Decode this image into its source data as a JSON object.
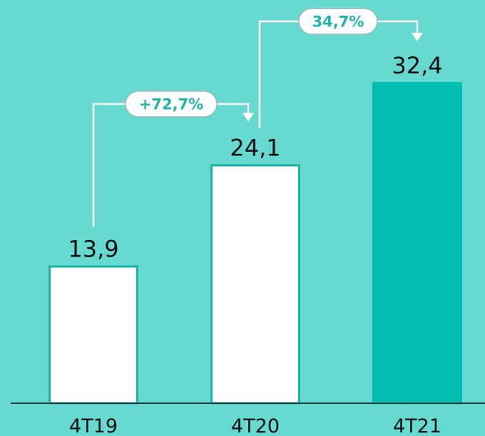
{
  "chart_data": {
    "type": "bar",
    "categories": [
      "4T19",
      "4T20",
      "4T21"
    ],
    "values": [
      13.9,
      24.1,
      32.4
    ],
    "value_labels": [
      "13,9",
      "24,1",
      "32,4"
    ],
    "growth_annotations": [
      {
        "from": "4T19",
        "to": "4T20",
        "label": "+72,7%"
      },
      {
        "from": "4T20",
        "to": "4T21",
        "label": "34,7%"
      }
    ],
    "title": "",
    "xlabel": "",
    "ylabel": "",
    "ylim": [
      0,
      32.4
    ],
    "grid": false,
    "legend": "none"
  },
  "colors": {
    "background": "#66d9d0",
    "bar_outline": "#17b3a8",
    "bar_fill_white": "#ffffff",
    "bar_fill_highlight": "#00bfb2",
    "pill_text": "#1fb5aa",
    "text": "#111111"
  }
}
